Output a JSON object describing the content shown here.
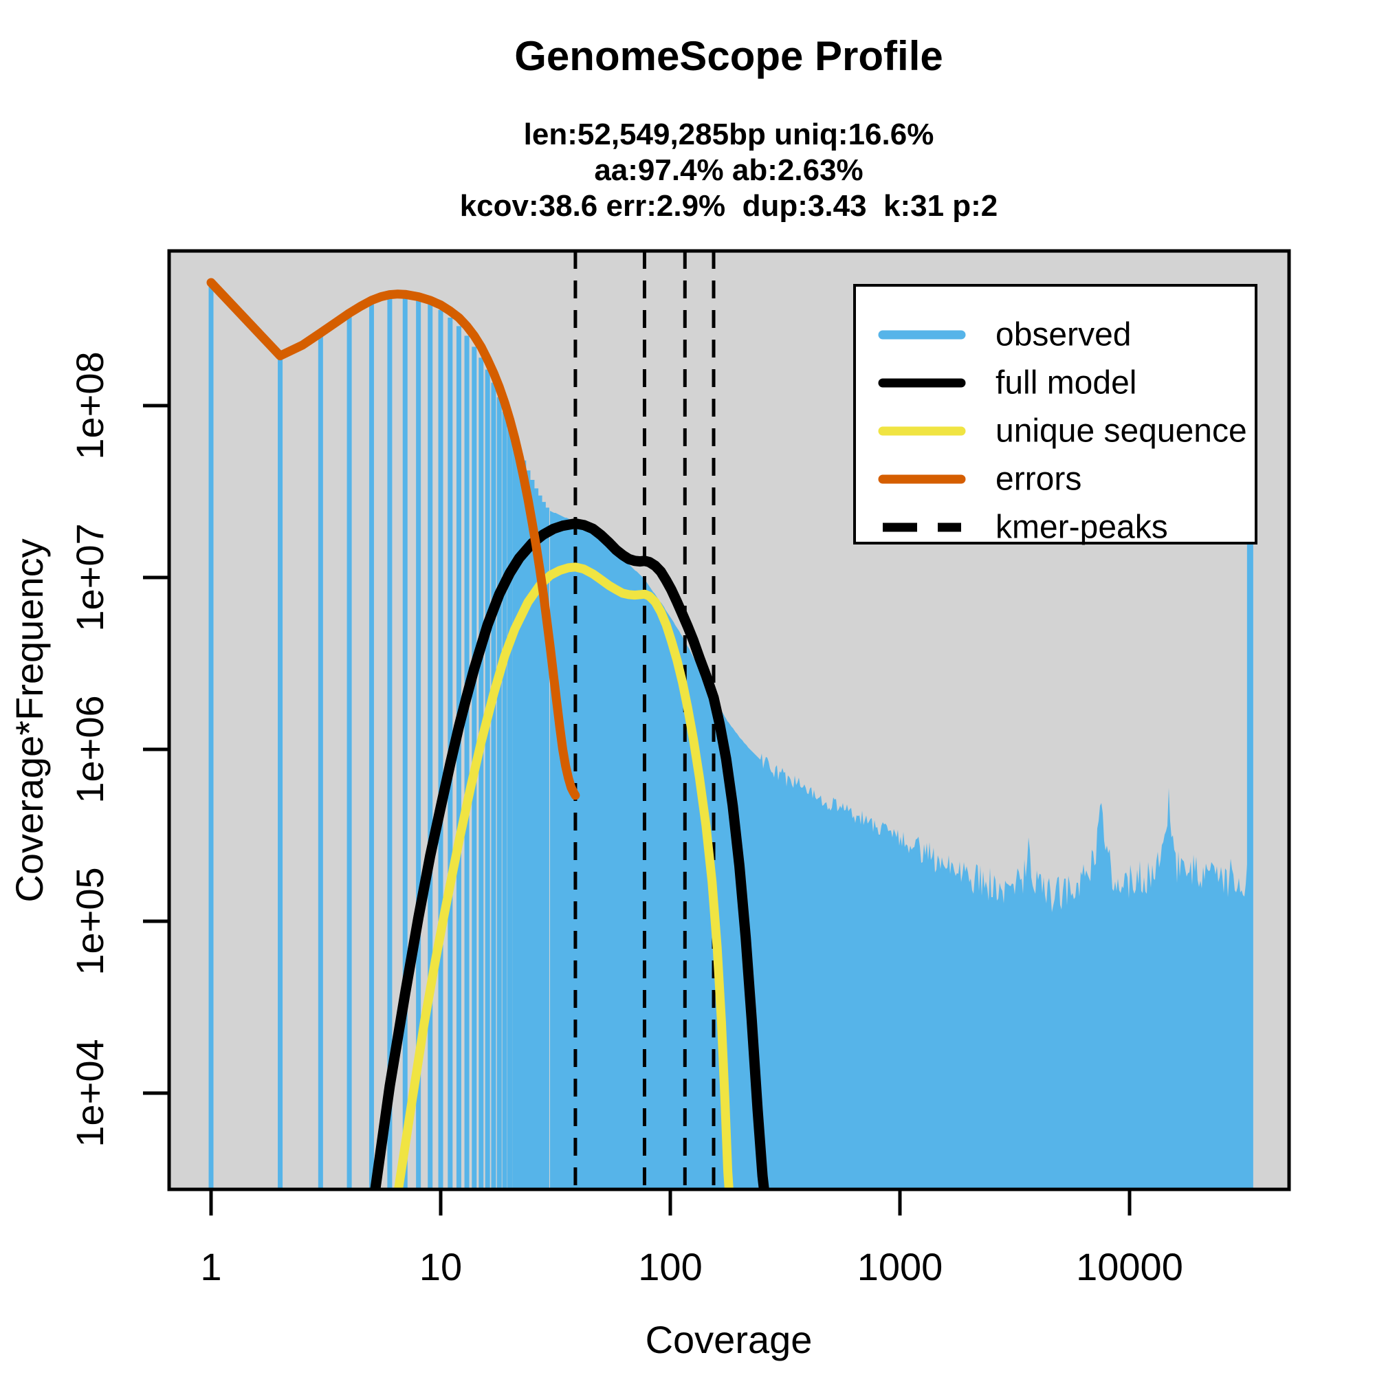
{
  "chart_data": {
    "type": "histogram-with-model-lines",
    "title": "GenomeScope Profile",
    "subtitle1": "len:52,549,285bp uniq:16.6%",
    "subtitle2": "aa:97.4% ab:2.63%",
    "subtitle3": "kcov:38.6 err:2.9%  dup:3.43  k:31 p:2",
    "stats": {
      "len_bp": "52,549,285",
      "uniq_pct": 16.6,
      "aa_pct": 97.4,
      "ab_pct": 2.63,
      "kcov": 38.6,
      "err_pct": 2.9,
      "dup": 3.43,
      "k": 31,
      "p": 2
    },
    "xlabel": "Coverage",
    "ylabel": "Coverage*Frequency",
    "x_scale": "log10",
    "y_scale": "log10",
    "xlim": [
      0.66,
      49500
    ],
    "ylim": [
      2750,
      790000000
    ],
    "grid": false,
    "plot_bg": "#d3d3d3",
    "x_ticks": [
      {
        "v": 1,
        "label": "1"
      },
      {
        "v": 10,
        "label": "10"
      },
      {
        "v": 100,
        "label": "100"
      },
      {
        "v": 1000,
        "label": "1000"
      },
      {
        "v": 10000,
        "label": "10000"
      }
    ],
    "y_ticks": [
      {
        "v": 10000,
        "label": "1e+04"
      },
      {
        "v": 100000,
        "label": "1e+05"
      },
      {
        "v": 1000000,
        "label": "1e+06"
      },
      {
        "v": 10000000,
        "label": "1e+07"
      },
      {
        "v": 100000000,
        "label": "1e+08"
      }
    ],
    "kmer_peaks": [
      38.6,
      77.2,
      115.8,
      154.4
    ],
    "legend": {
      "position": "top-right",
      "items": [
        {
          "label": "observed",
          "color": "#56B4E9",
          "dashed": false
        },
        {
          "label": "full model",
          "color": "#000000",
          "dashed": false
        },
        {
          "label": "unique sequence",
          "color": "#F0E442",
          "dashed": false
        },
        {
          "label": "errors",
          "color": "#D55E00",
          "dashed": false
        },
        {
          "label": "kmer-peaks",
          "color": "#000000",
          "dashed": true
        }
      ]
    },
    "series_colors": {
      "observed": "#56B4E9",
      "full_model": "#000000",
      "unique_sequence": "#F0E442",
      "errors": "#D55E00"
    },
    "observed": {
      "bars_start_coverage": 1,
      "bars": [
        520000000.0,
        194000000.0,
        265000000.0,
        350000000.0,
        415000000.0,
        445000000.0,
        442000000.0,
        425000000.0,
        400000000.0,
        360000000.0,
        325000000.0,
        290000000.0,
        255000000.0,
        220000000.0,
        190000000.0,
        162000000.0,
        136000000.0,
        112000000.0,
        92000000.0,
        78000000.0,
        66000000.0,
        56000000.0,
        48000000.0,
        42000000.0,
        37000000.0,
        33000000.0,
        30000000.0,
        27500000.0,
        25500000.0
      ],
      "envelope": [
        [
          30,
          24500000.0
        ],
        [
          33,
          23000000.0
        ],
        [
          36,
          22000000.0
        ],
        [
          38.6,
          21500000.0
        ],
        [
          42,
          20500000.0
        ],
        [
          46,
          19000000.0
        ],
        [
          50,
          17200000.0
        ],
        [
          55,
          15200000.0
        ],
        [
          60,
          13500000.0
        ],
        [
          66,
          11900000.0
        ],
        [
          72,
          10700000.0
        ],
        [
          77,
          9800000.0
        ],
        [
          84,
          8300000.0
        ],
        [
          92,
          7000000.0
        ],
        [
          100,
          5900000.0
        ],
        [
          110,
          4800000.0
        ],
        [
          120,
          3900000.0
        ],
        [
          132,
          3050000.0
        ],
        [
          145,
          2400000.0
        ],
        [
          160,
          1850000.0
        ],
        [
          178,
          1450000.0
        ],
        [
          200,
          1180000.0
        ],
        [
          225,
          980000.0
        ],
        [
          255,
          840000.0
        ],
        [
          290,
          740000.0
        ],
        [
          330,
          660000.0
        ],
        [
          380,
          590000.0
        ],
        [
          440,
          530000.0
        ],
        [
          510,
          480000.0
        ],
        [
          600,
          430000.0
        ],
        [
          700,
          390000.0
        ],
        [
          820,
          350000.0
        ],
        [
          950,
          310000.0
        ],
        [
          1100,
          280000.0
        ],
        [
          1300,
          250000.0
        ],
        [
          1500,
          220000.0
        ],
        [
          1750,
          200000.0
        ],
        [
          2000,
          185000.0
        ],
        [
          2300,
          170000.0
        ],
        [
          2700,
          155000.0
        ],
        [
          3100,
          150000.0
        ],
        [
          3500,
          190000.0
        ],
        [
          3650,
          260000.0
        ],
        [
          3800,
          180000.0
        ],
        [
          4200,
          150000.0
        ],
        [
          4800,
          140000.0
        ],
        [
          5500,
          155000.0
        ],
        [
          6200,
          170000.0
        ],
        [
          6800,
          200000.0
        ],
        [
          7300,
          320000.0
        ],
        [
          7600,
          440000.0
        ],
        [
          7900,
          290000.0
        ],
        [
          8400,
          190000.0
        ],
        [
          9200,
          160000.0
        ],
        [
          10000,
          170000.0
        ],
        [
          11000,
          190000.0
        ],
        [
          12000,
          175000.0
        ],
        [
          13000,
          210000.0
        ],
        [
          14000,
          260000.0
        ],
        [
          14800,
          530000.0
        ],
        [
          15300,
          340000.0
        ],
        [
          16000,
          210000.0
        ],
        [
          17500,
          180000.0
        ],
        [
          19000,
          195000.0
        ],
        [
          21000,
          170000.0
        ],
        [
          23500,
          185000.0
        ],
        [
          26000,
          170000.0
        ],
        [
          28500,
          190000.0
        ],
        [
          31000,
          175000.0
        ],
        [
          33000,
          185000.0
        ]
      ],
      "cutoff_spike": {
        "coverage": 33500,
        "value": 16000000.0
      }
    },
    "full_model_points": [
      [
        5.2,
        2800.0
      ],
      [
        6,
        11000.0
      ],
      [
        7,
        38000.0
      ],
      [
        8,
        105000.0
      ],
      [
        9,
        240000.0
      ],
      [
        10,
        460000.0
      ],
      [
        11,
        820000.0
      ],
      [
        12,
        1350000.0
      ],
      [
        13,
        2050000.0
      ],
      [
        14,
        2950000.0
      ],
      [
        16,
        5300000.0
      ],
      [
        18,
        8000000.0
      ],
      [
        20,
        10600000.0
      ],
      [
        22,
        13000000.0
      ],
      [
        25,
        15800000.0
      ],
      [
        28,
        17800000.0
      ],
      [
        31,
        19200000.0
      ],
      [
        34,
        20000000.0
      ],
      [
        38.6,
        20600000.0
      ],
      [
        42,
        20200000.0
      ],
      [
        46,
        19200000.0
      ],
      [
        50,
        17600000.0
      ],
      [
        54,
        16000000.0
      ],
      [
        58,
        14500000.0
      ],
      [
        62,
        13500000.0
      ],
      [
        66,
        12800000.0
      ],
      [
        70,
        12500000.0
      ],
      [
        74,
        12400000.0
      ],
      [
        77.2,
        12500000.0
      ],
      [
        81,
        12300000.0
      ],
      [
        86,
        11700000.0
      ],
      [
        91,
        10800000.0
      ],
      [
        96,
        9600000.0
      ],
      [
        101,
        8500000.0
      ],
      [
        107,
        7200000.0
      ],
      [
        113,
        6100000.0
      ],
      [
        119,
        5200000.0
      ],
      [
        126,
        4300000.0
      ],
      [
        134,
        3400000.0
      ],
      [
        143,
        2700000.0
      ],
      [
        154.4,
        2000000.0
      ],
      [
        164,
        1400000.0
      ],
      [
        175,
        880000.0
      ],
      [
        187,
        470000.0
      ],
      [
        200,
        210000.0
      ],
      [
        213,
        80000.0
      ],
      [
        226,
        27000.0
      ],
      [
        240,
        8000.0
      ],
      [
        252,
        3300.0
      ],
      [
        258,
        2500.0
      ]
    ],
    "unique_sequence_points": [
      [
        6.5,
        2600.0
      ],
      [
        7.5,
        9000.0
      ],
      [
        8.5,
        26000.0
      ],
      [
        9.5,
        60000.0
      ],
      [
        10.5,
        120000.0
      ],
      [
        12,
        290000.0
      ],
      [
        13.5,
        600000.0
      ],
      [
        15,
        1100000.0
      ],
      [
        17,
        2100000.0
      ],
      [
        19,
        3500000.0
      ],
      [
        21,
        5000000.0
      ],
      [
        24,
        7200000.0
      ],
      [
        27,
        9000000.0
      ],
      [
        30,
        10300000.0
      ],
      [
        33,
        11000000.0
      ],
      [
        36,
        11400000.0
      ],
      [
        38.6,
        11500000.0
      ],
      [
        42,
        11200000.0
      ],
      [
        46,
        10500000.0
      ],
      [
        50,
        9700000.0
      ],
      [
        54,
        9000000.0
      ],
      [
        58,
        8500000.0
      ],
      [
        62,
        8100000.0
      ],
      [
        66,
        7950000.0
      ],
      [
        70,
        7900000.0
      ],
      [
        74,
        7950000.0
      ],
      [
        77.2,
        8000000.0
      ],
      [
        81,
        7800000.0
      ],
      [
        86,
        7200000.0
      ],
      [
        91,
        6300000.0
      ],
      [
        96,
        5300000.0
      ],
      [
        101,
        4300000.0
      ],
      [
        107,
        3300000.0
      ],
      [
        113,
        2450000.0
      ],
      [
        119,
        1750000.0
      ],
      [
        126,
        1150000.0
      ],
      [
        134,
        680000.0
      ],
      [
        143,
        360000.0
      ],
      [
        152,
        170000.0
      ],
      [
        160,
        70000.0
      ],
      [
        167,
        26000.0
      ],
      [
        173,
        9000.0
      ],
      [
        178,
        3500.0
      ],
      [
        181,
        2500.0
      ]
    ],
    "errors_points": [
      [
        1,
        520000000.0
      ],
      [
        2,
        195000000.0
      ],
      [
        2.5,
        225000000.0
      ],
      [
        3,
        265000000.0
      ],
      [
        3.5,
        305000000.0
      ],
      [
        4,
        345000000.0
      ],
      [
        4.5,
        380000000.0
      ],
      [
        5,
        410000000.0
      ],
      [
        5.5,
        430000000.0
      ],
      [
        6,
        442000000.0
      ],
      [
        6.5,
        446000000.0
      ],
      [
        7,
        444000000.0
      ],
      [
        8,
        430000000.0
      ],
      [
        9,
        410000000.0
      ],
      [
        10,
        385000000.0
      ],
      [
        11,
        355000000.0
      ],
      [
        12,
        325000000.0
      ],
      [
        13,
        290000000.0
      ],
      [
        14,
        255000000.0
      ],
      [
        15,
        220000000.0
      ],
      [
        16,
        185000000.0
      ],
      [
        17,
        155000000.0
      ],
      [
        18,
        128000000.0
      ],
      [
        19,
        104000000.0
      ],
      [
        20,
        83000000.0
      ],
      [
        21,
        65000000.0
      ],
      [
        22,
        50000000.0
      ],
      [
        23,
        38000000.0
      ],
      [
        24,
        28500000.0
      ],
      [
        25,
        21000000.0
      ],
      [
        26,
        15500000.0
      ],
      [
        27,
        11200000.0
      ],
      [
        28,
        8000000.0
      ],
      [
        29,
        5600000.0
      ],
      [
        30,
        3900000.0
      ],
      [
        31,
        2700000.0
      ],
      [
        32,
        1900000.0
      ],
      [
        33,
        1350000.0
      ],
      [
        34,
        1000000.0
      ],
      [
        35,
        800000.0
      ],
      [
        36,
        680000.0
      ],
      [
        37,
        600000.0
      ],
      [
        38,
        560000.0
      ],
      [
        38.6,
        540000.0
      ]
    ]
  }
}
